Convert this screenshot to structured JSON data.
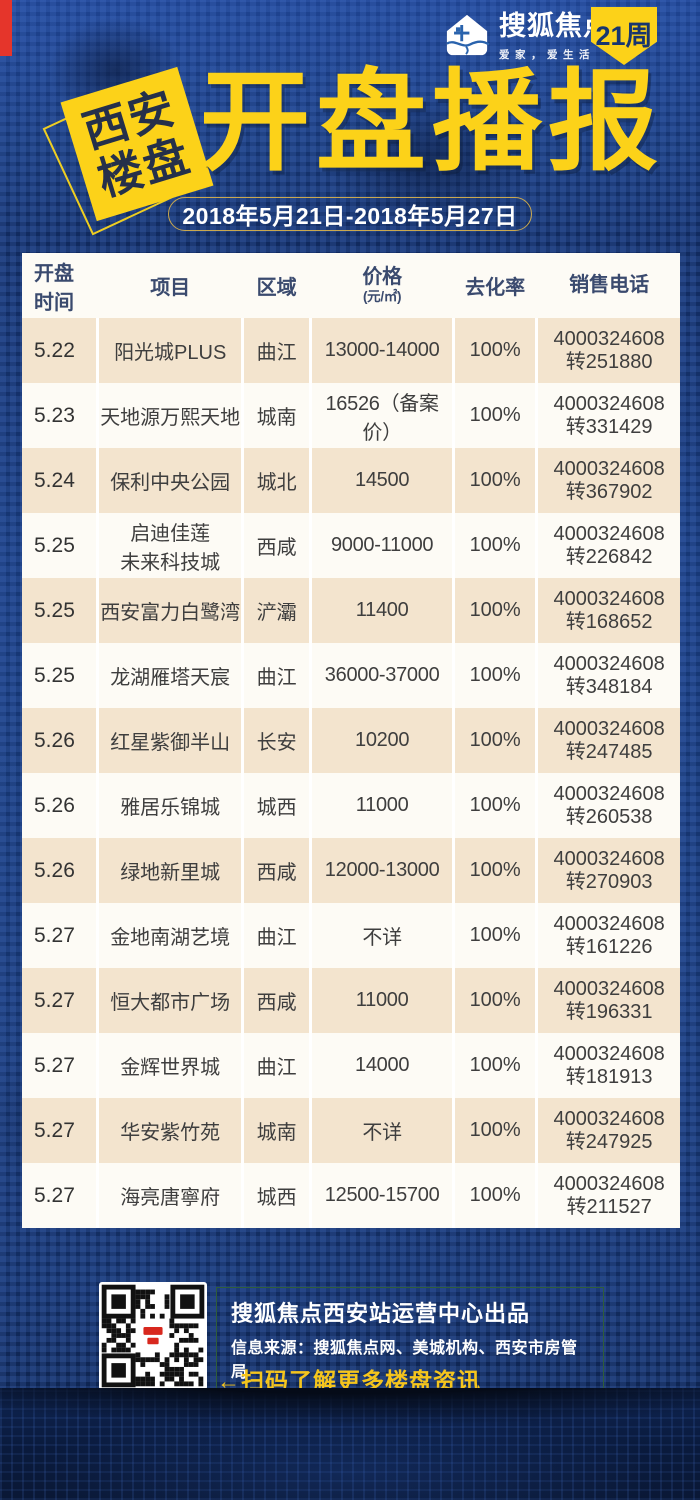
{
  "brand": {
    "name": "搜狐焦点",
    "tagline": "爱家，爱生活",
    "week_badge": "21周"
  },
  "title": {
    "badge_line1": "西安",
    "badge_line2": "楼盘",
    "main": "开盘播报",
    "date_range": "2018年5月21日-2018年5月27日"
  },
  "table": {
    "headers": {
      "time": "开盘\n时间",
      "project": "项目",
      "region": "区域",
      "price": "价格",
      "price_unit": "(元/㎡)",
      "rate": "去化率",
      "phone": "销售电话"
    },
    "rows": [
      {
        "date": "5.22",
        "project": "阳光城PLUS",
        "region": "曲江",
        "price": "13000-14000",
        "rate": "100%",
        "phone": "4000324608",
        "ext": "转251880"
      },
      {
        "date": "5.23",
        "project": "天地源万熙天地",
        "region": "城南",
        "price": "16526（备案价）",
        "rate": "100%",
        "phone": "4000324608",
        "ext": "转331429"
      },
      {
        "date": "5.24",
        "project": "保利中央公园",
        "region": "城北",
        "price": "14500",
        "rate": "100%",
        "phone": "4000324608",
        "ext": "转367902"
      },
      {
        "date": "5.25",
        "project": "启迪佳莲\n未来科技城",
        "region": "西咸",
        "price": "9000-11000",
        "rate": "100%",
        "phone": "4000324608",
        "ext": "转226842"
      },
      {
        "date": "5.25",
        "project": "西安富力白鹭湾",
        "region": "浐灞",
        "price": "11400",
        "rate": "100%",
        "phone": "4000324608",
        "ext": "转168652"
      },
      {
        "date": "5.25",
        "project": "龙湖雁塔天宸",
        "region": "曲江",
        "price": "36000-37000",
        "rate": "100%",
        "phone": "4000324608",
        "ext": "转348184"
      },
      {
        "date": "5.26",
        "project": "红星紫御半山",
        "region": "长安",
        "price": "10200",
        "rate": "100%",
        "phone": "4000324608",
        "ext": "转247485"
      },
      {
        "date": "5.26",
        "project": "雅居乐锦城",
        "region": "城西",
        "price": "11000",
        "rate": "100%",
        "phone": "4000324608",
        "ext": "转260538"
      },
      {
        "date": "5.26",
        "project": "绿地新里城",
        "region": "西咸",
        "price": "12000-13000",
        "rate": "100%",
        "phone": "4000324608",
        "ext": "转270903"
      },
      {
        "date": "5.27",
        "project": "金地南湖艺境",
        "region": "曲江",
        "price": "不详",
        "rate": "100%",
        "phone": "4000324608",
        "ext": "转161226"
      },
      {
        "date": "5.27",
        "project": "恒大都市广场",
        "region": "西咸",
        "price": "11000",
        "rate": "100%",
        "phone": "4000324608",
        "ext": "转196331"
      },
      {
        "date": "5.27",
        "project": "金辉世界城",
        "region": "曲江",
        "price": "14000",
        "rate": "100%",
        "phone": "4000324608",
        "ext": "转181913"
      },
      {
        "date": "5.27",
        "project": "华安紫竹苑",
        "region": "城南",
        "price": "不详",
        "rate": "100%",
        "phone": "4000324608",
        "ext": "转247925"
      },
      {
        "date": "5.27",
        "project": "海亮唐寧府",
        "region": "城西",
        "price": "12500-15700",
        "rate": "100%",
        "phone": "4000324608",
        "ext": "转211527"
      }
    ]
  },
  "footer": {
    "produced_by": "搜狐焦点西安站运营中心出品",
    "source": "信息来源：搜狐焦点网、美城机构、西安市房管局",
    "scan_tip": "←扫码了解更多楼盘资讯"
  },
  "colors": {
    "accent_yellow": "#fcd219",
    "background_navy": "#16356e",
    "row_beige": "#f3e4ce",
    "row_white": "#fdfbf5",
    "header_text_navy": "#3a4a6e",
    "date_pill_border_gold": "#caa84e",
    "footer_tip_yellow": "#f5c51d",
    "footer_box_border": "#2f5d3a",
    "red_bar": "#e5352b",
    "qr_logo_red": "#d8281e"
  }
}
